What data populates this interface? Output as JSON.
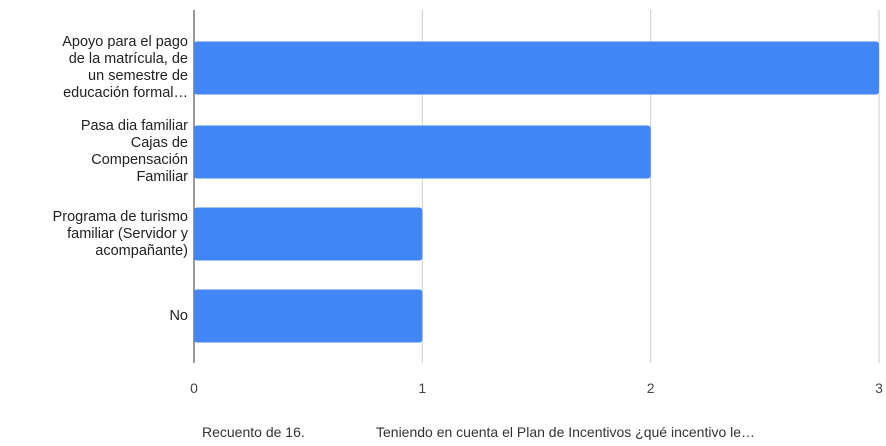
{
  "chart_data": {
    "type": "bar",
    "orientation": "horizontal",
    "categories": [
      [
        "Apoyo para el pago",
        "de la matrícula, de",
        "un semestre de",
        "educación formal…"
      ],
      [
        "Pasa dia familiar",
        "Cajas de",
        "Compensación",
        "Familiar"
      ],
      [
        "Programa de turismo",
        "familiar (Servidor y",
        "acompañante)"
      ],
      [
        "No"
      ]
    ],
    "values": [
      3,
      2,
      1,
      1
    ],
    "x_ticks": [
      "0",
      "1",
      "2",
      "3"
    ],
    "xlim": [
      0,
      3
    ],
    "grid": true,
    "bar_color": "#4285f4",
    "xlabel": "Recuento de 16.",
    "ylabel": "Teniendo en cuenta el Plan de Incentivos ¿qué incentivo le…"
  }
}
